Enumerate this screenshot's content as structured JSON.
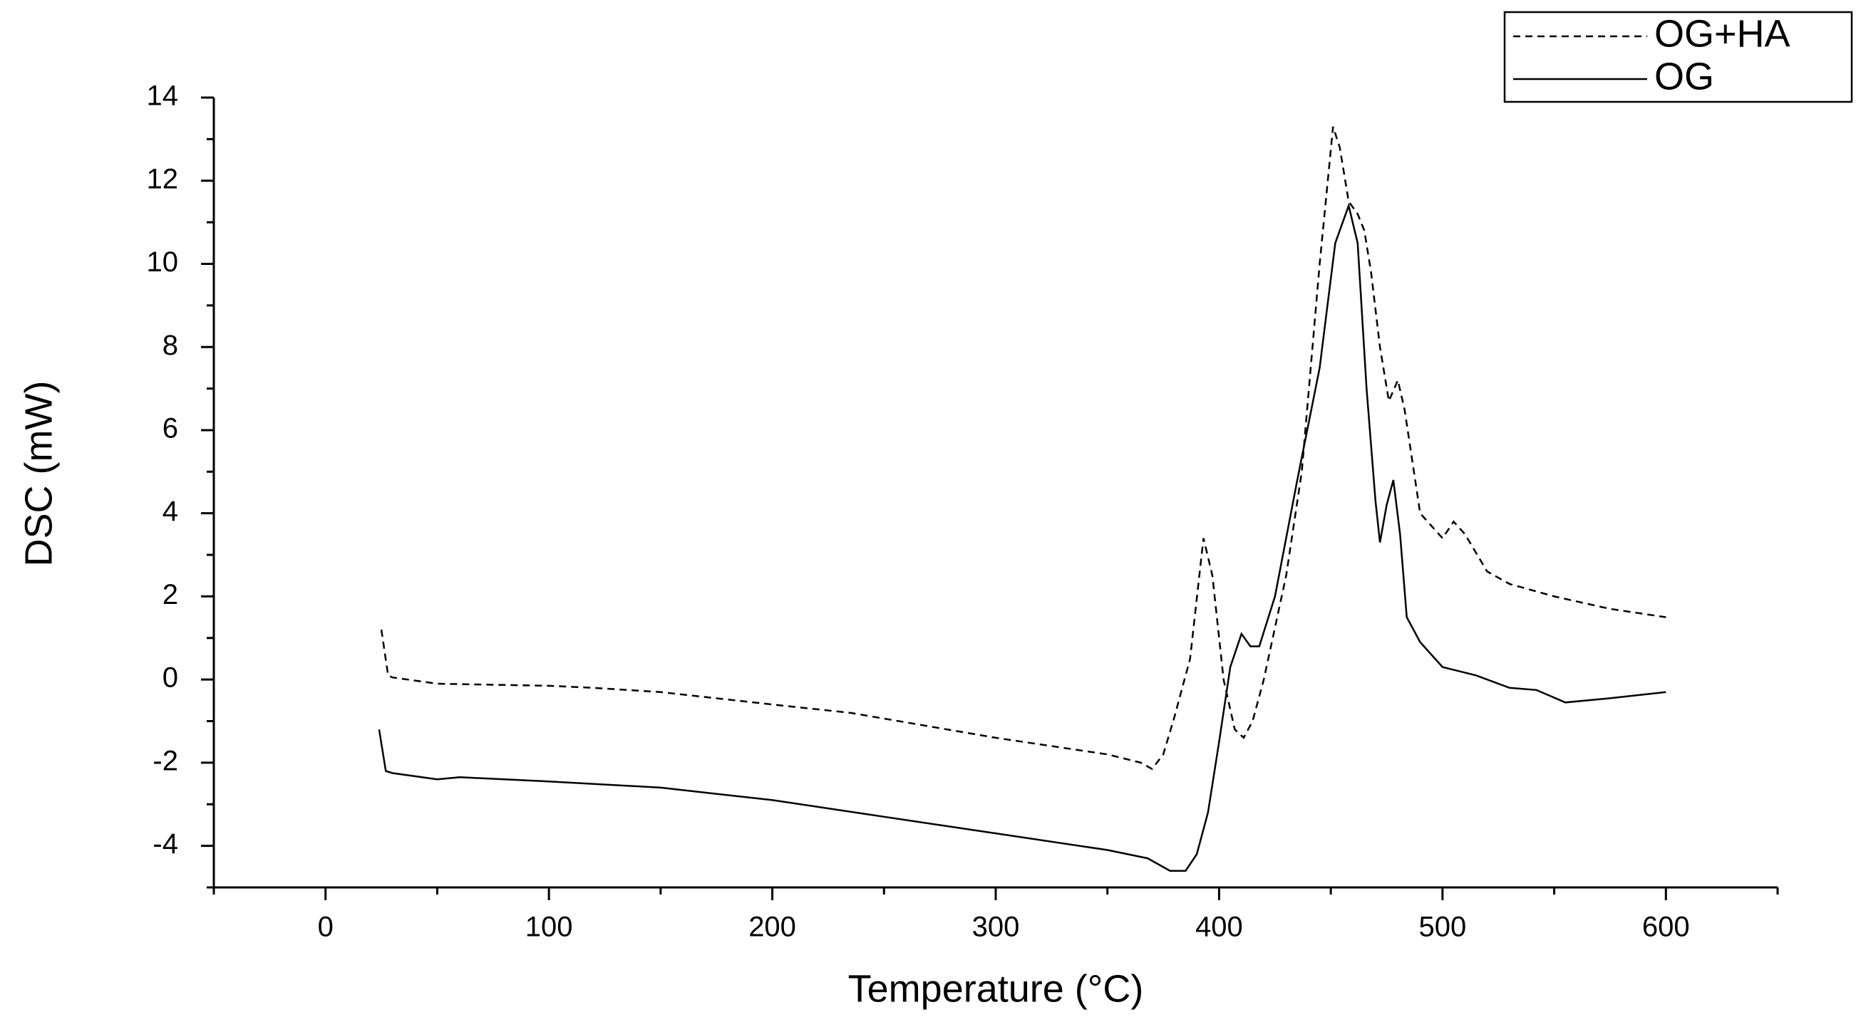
{
  "chart_data": {
    "type": "line",
    "xlabel": "Temperature (°C)",
    "ylabel": "DSC (mW)",
    "xlim": [
      -50,
      650
    ],
    "ylim": [
      -5,
      14
    ],
    "xticks": [
      0,
      100,
      200,
      300,
      400,
      500,
      600
    ],
    "xminorticks": [
      -50,
      50,
      150,
      250,
      350,
      450,
      550,
      650
    ],
    "yticks": [
      -4,
      -2,
      0,
      2,
      4,
      6,
      8,
      10,
      12,
      14
    ],
    "yminorticks": [
      -5,
      -3,
      -1,
      1,
      3,
      5,
      7,
      9,
      11,
      13
    ],
    "legend": "top-right",
    "grid": false,
    "series": [
      {
        "name": "OG+HA",
        "color": "#000000",
        "dash": "dashed",
        "x": [
          25,
          28,
          30,
          50,
          100,
          120,
          150,
          200,
          235,
          300,
          350,
          365,
          370,
          375,
          380,
          387,
          393,
          397,
          402,
          407,
          411,
          415,
          420,
          430,
          437,
          445,
          451,
          454,
          458,
          462,
          465,
          468,
          472,
          476,
          480,
          483,
          490,
          500,
          505,
          510,
          520,
          530,
          550,
          575,
          600
        ],
        "values": [
          1.2,
          0.1,
          0.05,
          -0.1,
          -0.15,
          -0.2,
          -0.3,
          -0.6,
          -0.8,
          -1.4,
          -1.8,
          -2.0,
          -2.15,
          -1.8,
          -0.9,
          0.5,
          3.4,
          2.5,
          0,
          -1.2,
          -1.4,
          -1.0,
          0,
          2.5,
          5,
          10,
          13.3,
          12.8,
          11.5,
          11.2,
          10.8,
          9.8,
          8,
          6.7,
          7.2,
          6.5,
          4.0,
          3.4,
          3.8,
          3.5,
          2.6,
          2.3,
          2.0,
          1.7,
          1.5
        ]
      },
      {
        "name": "OG",
        "color": "#000000",
        "dash": "solid",
        "x": [
          24,
          27,
          30,
          50,
          60,
          100,
          150,
          200,
          250,
          300,
          350,
          368,
          378,
          385,
          390,
          395,
          400,
          405,
          410,
          414,
          418,
          425,
          435,
          445,
          452,
          458,
          462,
          466,
          470,
          472,
          475,
          478,
          481,
          484,
          490,
          500,
          515,
          530,
          542,
          555,
          575,
          600
        ],
        "values": [
          -1.2,
          -2.2,
          -2.25,
          -2.4,
          -2.35,
          -2.45,
          -2.6,
          -2.9,
          -3.3,
          -3.7,
          -4.1,
          -4.3,
          -4.6,
          -4.6,
          -4.2,
          -3.2,
          -1.5,
          0.3,
          1.1,
          0.8,
          0.8,
          2,
          4.8,
          7.5,
          10.5,
          11.4,
          10.5,
          7,
          4.3,
          3.3,
          4.2,
          4.8,
          3.5,
          1.5,
          0.9,
          0.3,
          0.1,
          -0.2,
          -0.25,
          -0.55,
          -0.45,
          -0.3
        ]
      }
    ]
  }
}
